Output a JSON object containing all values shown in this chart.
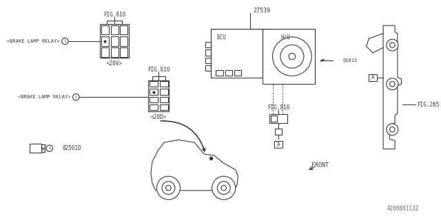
{
  "bg_color": "#ffffff",
  "line_color": "#3a3a3a",
  "text_color": "#3a3a3a",
  "part_number_top": "27539",
  "label_hu": "H/U",
  "label_ecu": "ECU",
  "label_0101s": "0101S",
  "label_fig810": "FIG.810",
  "label_fig265": "FIG.265",
  "label_brake_relay_20v": "<BRAKE LAMP RELAY>",
  "label_brake_relay_20d": "<BRAKE LAMP RELAY>",
  "label_20v": "<20V>",
  "label_20d": "<20D>",
  "label_82501d": "82501D",
  "label_front": "FRONT",
  "label_a": "A",
  "watermark": "A266001132"
}
